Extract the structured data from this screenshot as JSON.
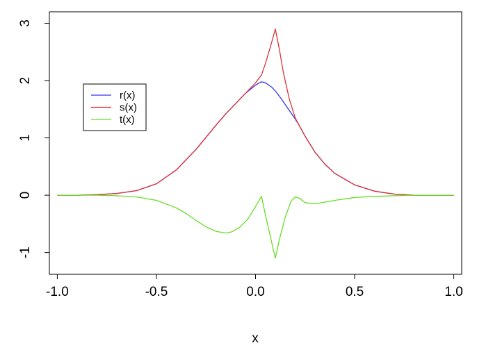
{
  "chart_data": {
    "type": "line",
    "title": "",
    "xlabel": "x",
    "ylabel": "",
    "xlim": [
      -1.04,
      1.04
    ],
    "ylim": [
      -1.38,
      3.2
    ],
    "xticks": [
      -1.0,
      -0.5,
      0.0,
      0.5,
      1.0
    ],
    "xtick_labels": [
      "-1.0",
      "-0.5",
      "0.0",
      "0.5",
      "1.0"
    ],
    "yticks": [
      -1,
      0,
      1,
      2,
      3
    ],
    "ytick_labels": [
      "-1",
      "0",
      "1",
      "2",
      "3"
    ],
    "grid": false,
    "legend_position": "upper-left",
    "series": [
      {
        "name": "r(x)",
        "color": "#3333ee",
        "x": [
          -1.0,
          -0.9,
          -0.8,
          -0.7,
          -0.6,
          -0.5,
          -0.4,
          -0.3,
          -0.2,
          -0.15,
          -0.1,
          -0.05,
          0.0,
          0.03,
          0.05,
          0.08,
          0.1,
          0.13,
          0.16,
          0.2,
          0.22,
          0.25,
          0.3,
          0.35,
          0.4,
          0.5,
          0.6,
          0.7,
          0.8,
          0.9,
          1.0
        ],
        "y": [
          0.0,
          0.0,
          0.01,
          0.03,
          0.08,
          0.2,
          0.44,
          0.8,
          1.22,
          1.42,
          1.6,
          1.78,
          1.92,
          1.98,
          1.96,
          1.89,
          1.82,
          1.68,
          1.53,
          1.33,
          1.22,
          1.03,
          0.75,
          0.54,
          0.38,
          0.18,
          0.07,
          0.02,
          0.0,
          0.0,
          0.0
        ]
      },
      {
        "name": "s(x)",
        "color": "#dd3333",
        "x": [
          -1.0,
          -0.9,
          -0.8,
          -0.7,
          -0.6,
          -0.5,
          -0.4,
          -0.3,
          -0.2,
          -0.15,
          -0.1,
          -0.05,
          0.0,
          0.03,
          0.05,
          0.08,
          0.1,
          0.12,
          0.14,
          0.17,
          0.2,
          0.22,
          0.25,
          0.3,
          0.35,
          0.4,
          0.5,
          0.6,
          0.7,
          0.8,
          0.9,
          1.0
        ],
        "y": [
          0.0,
          0.0,
          0.01,
          0.03,
          0.08,
          0.2,
          0.44,
          0.8,
          1.22,
          1.42,
          1.6,
          1.78,
          1.96,
          2.1,
          2.3,
          2.65,
          2.9,
          2.55,
          2.15,
          1.68,
          1.35,
          1.22,
          1.03,
          0.75,
          0.54,
          0.38,
          0.18,
          0.07,
          0.02,
          0.0,
          0.0,
          0.0
        ]
      },
      {
        "name": "t(x)",
        "color": "#66dd22",
        "x": [
          -1.0,
          -0.9,
          -0.8,
          -0.7,
          -0.6,
          -0.5,
          -0.4,
          -0.35,
          -0.3,
          -0.25,
          -0.2,
          -0.15,
          -0.12,
          -0.08,
          -0.04,
          0.0,
          0.02,
          0.03,
          0.05,
          0.08,
          0.1,
          0.12,
          0.15,
          0.18,
          0.2,
          0.22,
          0.25,
          0.3,
          0.35,
          0.4,
          0.5,
          0.6,
          0.7,
          0.8,
          0.9,
          1.0
        ],
        "y": [
          0.0,
          0.0,
          0.0,
          -0.01,
          -0.03,
          -0.09,
          -0.22,
          -0.32,
          -0.44,
          -0.55,
          -0.63,
          -0.66,
          -0.64,
          -0.56,
          -0.42,
          -0.2,
          -0.08,
          -0.02,
          -0.35,
          -0.8,
          -1.1,
          -0.78,
          -0.38,
          -0.1,
          -0.03,
          -0.05,
          -0.13,
          -0.15,
          -0.12,
          -0.09,
          -0.04,
          -0.02,
          -0.01,
          0.0,
          0.0,
          0.0
        ]
      }
    ]
  }
}
